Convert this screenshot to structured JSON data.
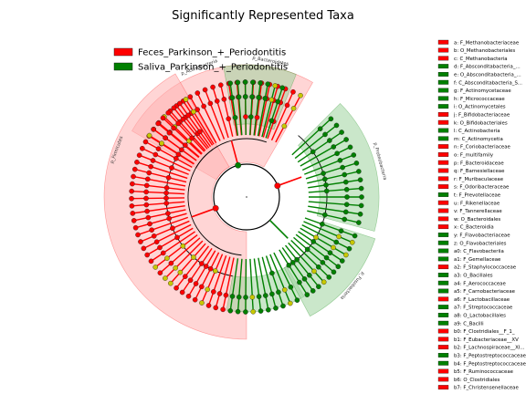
{
  "chart_data": {
    "type": "cladogram",
    "title": "Significantly Represented Taxa",
    "classes": [
      {
        "name": "Feces_Parkinson_+_Periodontitis",
        "color": "#ff0000"
      },
      {
        "name": "Saliva_Parkinson_+_Periodontitis",
        "color": "#008000"
      }
    ],
    "key_entries": [
      {
        "label": "a: F_Methanobacteriaceae",
        "class": 0
      },
      {
        "label": "b: O_Methanobacteriales",
        "class": 0
      },
      {
        "label": "c: C_Methanobacteria",
        "class": 0
      },
      {
        "label": "d: F_Absconditabacteria_...",
        "class": 1
      },
      {
        "label": "e: O_Absconditabacteria_...",
        "class": 1
      },
      {
        "label": "f: C_Absconditabacteria_S...",
        "class": 1
      },
      {
        "label": "g: F_Actinomycetaceae",
        "class": 1
      },
      {
        "label": "h: F_Micrococcaceae",
        "class": 1
      },
      {
        "label": "i: O_Actinomycetales",
        "class": 1
      },
      {
        "label": "j: F_Bifidobacteriaceae",
        "class": 0
      },
      {
        "label": "k: O_Bifidobacteriales",
        "class": 0
      },
      {
        "label": "l: C_Actinobacteria",
        "class": 1
      },
      {
        "label": "m: C_Actinomycetia",
        "class": 1
      },
      {
        "label": "n: F_Coriobacteriaceae",
        "class": 0
      },
      {
        "label": "o: F_multifamily",
        "class": 0
      },
      {
        "label": "p: F_Bacteroidaceae",
        "class": 0
      },
      {
        "label": "q: F_Barnesiellaceae",
        "class": 0
      },
      {
        "label": "r: F_Muribaculaceae",
        "class": 0
      },
      {
        "label": "s: F_Odoribacteraceae",
        "class": 0
      },
      {
        "label": "t: F_Prevotellaceae",
        "class": 1
      },
      {
        "label": "u: F_Rikenellaceae",
        "class": 0
      },
      {
        "label": "v: F_Tannerellaceae",
        "class": 0
      },
      {
        "label": "w: O_Bacteroidales",
        "class": 0
      },
      {
        "label": "x: C_Bacteroidia",
        "class": 0
      },
      {
        "label": "y: F_Flavobacteriaceae",
        "class": 1
      },
      {
        "label": "z: O_Flavobacteriales",
        "class": 1
      },
      {
        "label": "a0: C_Flavobacteriia",
        "class": 1
      },
      {
        "label": "a1: F_Gemellaceae",
        "class": 1
      },
      {
        "label": "a2: F_Staphylococcaceae",
        "class": 0
      },
      {
        "label": "a3: O_Bacillales",
        "class": 1
      },
      {
        "label": "a4: F_Aerococcaceae",
        "class": 1
      },
      {
        "label": "a5: F_Carnobacteriaceae",
        "class": 1
      },
      {
        "label": "a6: F_Lactobacillaceae",
        "class": 0
      },
      {
        "label": "a7: F_Streptococcaceae",
        "class": 1
      },
      {
        "label": "a8: O_Lactobacillales",
        "class": 1
      },
      {
        "label": "a9: C_Bacilli",
        "class": 1
      },
      {
        "label": "b0: F_Clostridiales__F_1_",
        "class": 0
      },
      {
        "label": "b1: F_Eubacteriaceae__XV",
        "class": 0
      },
      {
        "label": "b2: F_Lachnospiraceae__XI...",
        "class": 0
      },
      {
        "label": "b3: F_Peptostreptococcaceae",
        "class": 1
      },
      {
        "label": "b4: F_Peptostreptococcaceae",
        "class": 1
      },
      {
        "label": "b5: F_Ruminococcaceae",
        "class": 0
      },
      {
        "label": "b6: O_Clostridiales",
        "class": 0
      },
      {
        "label": "b7: F_Christensenellaceae",
        "class": 0
      }
    ],
    "clades": [
      {
        "name": "p_Bacteroidetes",
        "class": 0
      },
      {
        "name": "p_Actinobacteria",
        "class": 1
      },
      {
        "name": "p_Firmicutes",
        "class": 0
      },
      {
        "name": "p_Fusobacteria",
        "class": 1
      },
      {
        "name": "p_Proteobacteria",
        "class": 1
      }
    ]
  }
}
